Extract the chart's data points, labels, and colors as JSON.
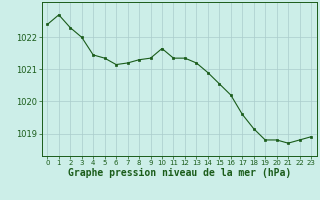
{
  "x": [
    0,
    1,
    2,
    3,
    4,
    5,
    6,
    7,
    8,
    9,
    10,
    11,
    12,
    13,
    14,
    15,
    16,
    17,
    18,
    19,
    20,
    21,
    22,
    23
  ],
  "y": [
    1022.4,
    1022.7,
    1022.3,
    1022.0,
    1021.45,
    1021.35,
    1021.15,
    1021.2,
    1021.3,
    1021.35,
    1021.65,
    1021.35,
    1021.35,
    1021.2,
    1020.9,
    1020.55,
    1020.2,
    1019.6,
    1019.15,
    1018.8,
    1018.8,
    1018.7,
    1018.8,
    1018.9
  ],
  "line_color": "#1a5c1a",
  "marker_color": "#1a5c1a",
  "bg_color": "#cceee8",
  "grid_color": "#aacccc",
  "xlabel": "Graphe pression niveau de la mer (hPa)",
  "xlabel_color": "#1a5c1a",
  "tick_label_color": "#1a5c1a",
  "ylim": [
    1018.3,
    1023.1
  ],
  "xlim": [
    -0.5,
    23.5
  ],
  "yticks": [
    1019,
    1020,
    1021,
    1022
  ],
  "xtick_labels": [
    "0",
    "1",
    "2",
    "3",
    "4",
    "5",
    "6",
    "7",
    "8",
    "9",
    "10",
    "11",
    "12",
    "13",
    "14",
    "15",
    "16",
    "17",
    "18",
    "19",
    "20",
    "21",
    "22",
    "23"
  ],
  "axis_color": "#1a5c1a"
}
